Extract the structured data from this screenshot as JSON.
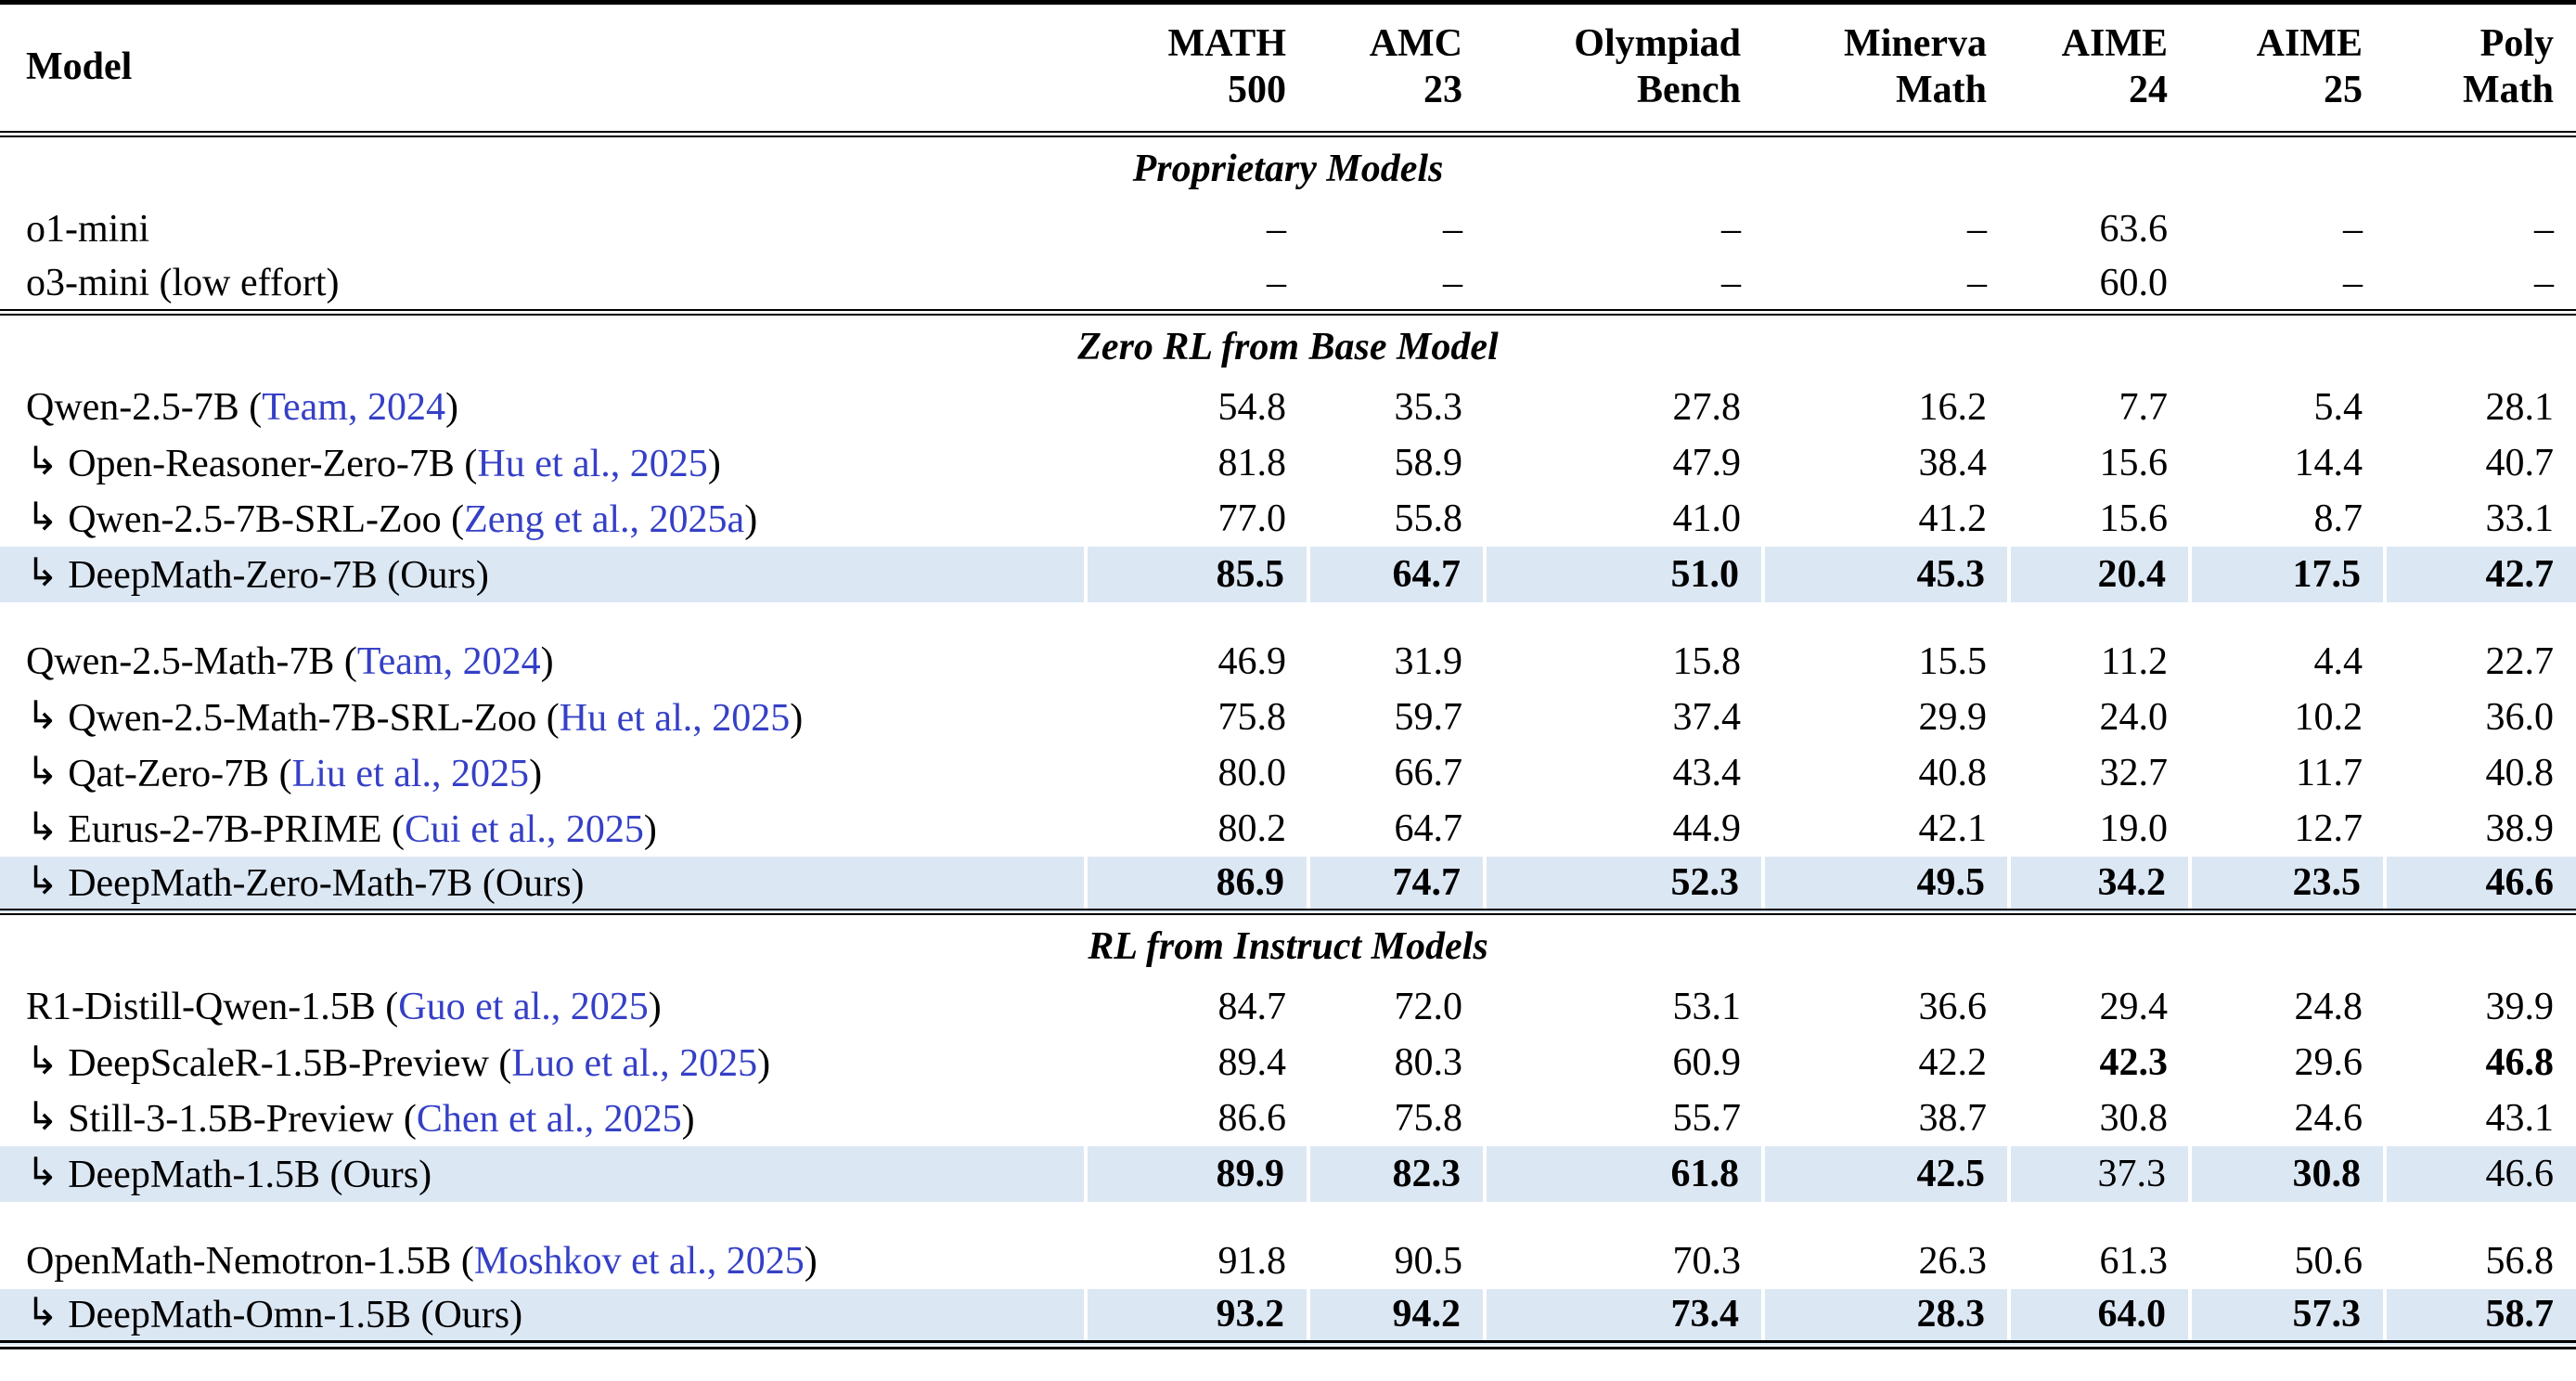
{
  "colors": {
    "citation_blue": "#3540c6",
    "highlight_row_bg": "#dce7f4",
    "rule_black": "#000000"
  },
  "glyphs": {
    "arrow": "↳"
  },
  "header": {
    "model_label": "Model",
    "columns": [
      {
        "line1": "MATH",
        "line2": "500"
      },
      {
        "line1": "AMC",
        "line2": "23"
      },
      {
        "line1": "Olympiad",
        "line2": "Bench"
      },
      {
        "line1": "Minerva",
        "line2": "Math"
      },
      {
        "line1": "AIME",
        "line2": "24"
      },
      {
        "line1": "AIME",
        "line2": "25"
      },
      {
        "line1": "Poly",
        "line2": "Math"
      }
    ]
  },
  "sections": [
    {
      "title": "Proprietary Models",
      "groups": [
        {
          "rows": [
            {
              "arrow": false,
              "pre": "o1-mini",
              "link": "",
              "post": "",
              "values": [
                "–",
                "–",
                "–",
                "–",
                "63.6",
                "–",
                "–"
              ]
            },
            {
              "arrow": false,
              "pre": "o3-mini (low effort)",
              "link": "",
              "post": "",
              "values": [
                "–",
                "–",
                "–",
                "–",
                "60.0",
                "–",
                "–"
              ]
            }
          ]
        }
      ]
    },
    {
      "title": "Zero RL from Base Model",
      "groups": [
        {
          "rows": [
            {
              "arrow": false,
              "pre": "Qwen-2.5-7B (",
              "link": "Team, 2024",
              "post": ")",
              "values": [
                "54.8",
                "35.3",
                "27.8",
                "16.2",
                "7.7",
                "5.4",
                "28.1"
              ]
            },
            {
              "arrow": true,
              "pre": "Open-Reasoner-Zero-7B (",
              "link": "Hu et al., 2025",
              "post": ")",
              "values": [
                "81.8",
                "58.9",
                "47.9",
                "38.4",
                "15.6",
                "14.4",
                "40.7"
              ]
            },
            {
              "arrow": true,
              "pre": "Qwen-2.5-7B-SRL-Zoo (",
              "link": "Zeng et al., 2025a",
              "post": ")",
              "values": [
                "77.0",
                "55.8",
                "41.0",
                "41.2",
                "15.6",
                "8.7",
                "33.1"
              ]
            },
            {
              "arrow": true,
              "pre": "DeepMath-Zero-7B (Ours)",
              "link": "",
              "post": "",
              "highlight": true,
              "values": [
                "85.5",
                "64.7",
                "51.0",
                "45.3",
                "20.4",
                "17.5",
                "42.7"
              ],
              "bold": [
                true,
                true,
                true,
                true,
                true,
                true,
                true
              ]
            }
          ]
        },
        {
          "rows": [
            {
              "arrow": false,
              "pre": "Qwen-2.5-Math-7B (",
              "link": "Team, 2024",
              "post": ")",
              "values": [
                "46.9",
                "31.9",
                "15.8",
                "15.5",
                "11.2",
                "4.4",
                "22.7"
              ]
            },
            {
              "arrow": true,
              "pre": "Qwen-2.5-Math-7B-SRL-Zoo (",
              "link": "Hu et al., 2025",
              "post": ")",
              "values": [
                "75.8",
                "59.7",
                "37.4",
                "29.9",
                "24.0",
                "10.2",
                "36.0"
              ]
            },
            {
              "arrow": true,
              "pre": "Qat-Zero-7B (",
              "link": "Liu et al., 2025",
              "post": ")",
              "values": [
                "80.0",
                "66.7",
                "43.4",
                "40.8",
                "32.7",
                "11.7",
                "40.8"
              ]
            },
            {
              "arrow": true,
              "pre": "Eurus-2-7B-PRIME (",
              "link": "Cui et al., 2025",
              "post": ")",
              "values": [
                "80.2",
                "64.7",
                "44.9",
                "42.1",
                "19.0",
                "12.7",
                "38.9"
              ]
            },
            {
              "arrow": true,
              "pre": "DeepMath-Zero-Math-7B (Ours)",
              "link": "",
              "post": "",
              "highlight": true,
              "values": [
                "86.9",
                "74.7",
                "52.3",
                "49.5",
                "34.2",
                "23.5",
                "46.6"
              ],
              "bold": [
                true,
                true,
                true,
                true,
                true,
                true,
                true
              ]
            }
          ]
        }
      ]
    },
    {
      "title": "RL from Instruct Models",
      "groups": [
        {
          "rows": [
            {
              "arrow": false,
              "pre": "R1-Distill-Qwen-1.5B (",
              "link": "Guo et al., 2025",
              "post": ")",
              "values": [
                "84.7",
                "72.0",
                "53.1",
                "36.6",
                "29.4",
                "24.8",
                "39.9"
              ]
            },
            {
              "arrow": true,
              "pre": "DeepScaleR-1.5B-Preview (",
              "link": "Luo et al., 2025",
              "post": ")",
              "values": [
                "89.4",
                "80.3",
                "60.9",
                "42.2",
                "42.3",
                "29.6",
                "46.8"
              ],
              "bold": [
                false,
                false,
                false,
                false,
                true,
                false,
                true
              ]
            },
            {
              "arrow": true,
              "pre": "Still-3-1.5B-Preview (",
              "link": "Chen et al., 2025",
              "post": ")",
              "values": [
                "86.6",
                "75.8",
                "55.7",
                "38.7",
                "30.8",
                "24.6",
                "43.1"
              ]
            },
            {
              "arrow": true,
              "pre": "DeepMath-1.5B (Ours)",
              "link": "",
              "post": "",
              "highlight": true,
              "values": [
                "89.9",
                "82.3",
                "61.8",
                "42.5",
                "37.3",
                "30.8",
                "46.6"
              ],
              "bold": [
                true,
                true,
                true,
                true,
                false,
                true,
                false
              ]
            }
          ]
        },
        {
          "rows": [
            {
              "arrow": false,
              "pre": "OpenMath-Nemotron-1.5B (",
              "link": "Moshkov et al., 2025",
              "post": ")",
              "values": [
                "91.8",
                "90.5",
                "70.3",
                "26.3",
                "61.3",
                "50.6",
                "56.8"
              ]
            },
            {
              "arrow": true,
              "pre": "DeepMath-Omn-1.5B (Ours)",
              "link": "",
              "post": "",
              "highlight": true,
              "values": [
                "93.2",
                "94.2",
                "73.4",
                "28.3",
                "64.0",
                "57.3",
                "58.7"
              ],
              "bold": [
                true,
                true,
                true,
                true,
                true,
                true,
                true
              ]
            }
          ]
        }
      ]
    }
  ]
}
